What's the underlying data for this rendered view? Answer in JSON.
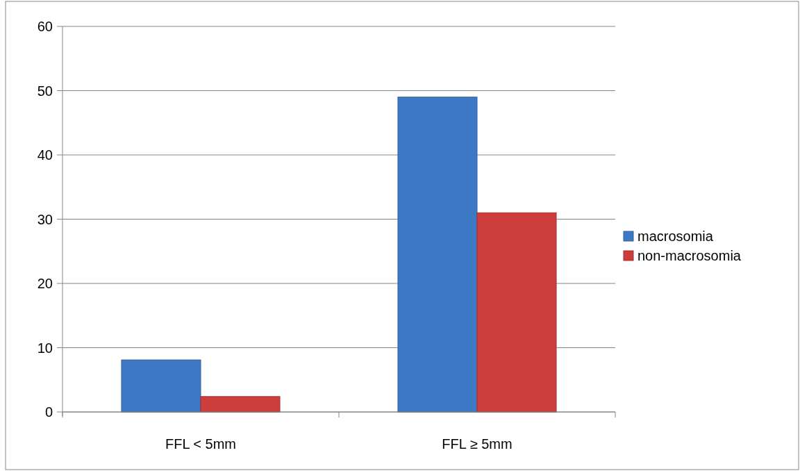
{
  "chart_data": {
    "type": "bar",
    "categories": [
      "FFL < 5mm",
      "FFL ≥ 5mm"
    ],
    "series": [
      {
        "name": "macrosomia",
        "color": "#3d78c4",
        "values": [
          8.1,
          49
        ]
      },
      {
        "name": "non-macrosomia",
        "color": "#cc3d3b",
        "values": [
          2.4,
          31
        ]
      }
    ],
    "ylim": [
      0,
      60
    ],
    "yticks": [
      0,
      10,
      20,
      30,
      40,
      50,
      60
    ],
    "grid": "y",
    "legend": "right"
  }
}
